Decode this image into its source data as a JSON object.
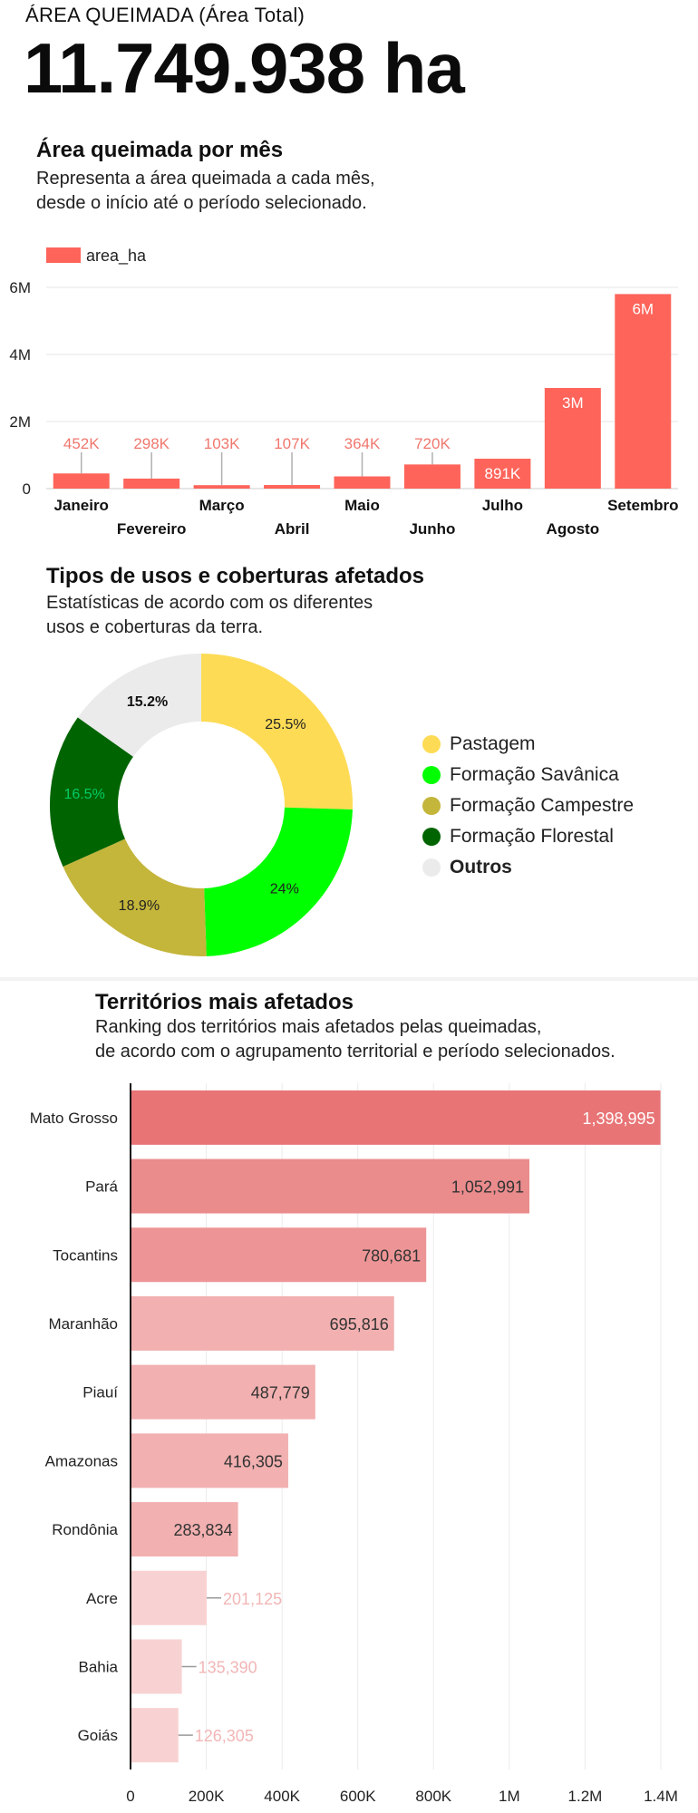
{
  "kpi": {
    "label": "ÁREA QUEIMADA (Área Total)",
    "value": "11.749.938 ha"
  },
  "monthly": {
    "title": "Área queimada por mês",
    "subtitle_lines": [
      "Representa a área queimada a cada mês,",
      "desde o início até o período selecionado."
    ],
    "bar_color": "#fe645a",
    "label_color": "#f0776e"
  },
  "landuse": {
    "title": "Tipos de usos e coberturas afetados",
    "subtitle_lines": [
      "Estatísticas de acordo com os diferentes",
      "usos e coberturas da terra."
    ]
  },
  "territories": {
    "title": "Territórios mais afetados",
    "subtitle_lines": [
      "Ranking dos territórios mais afetados pelas queimadas,",
      "de acordo com o agrupamento territorial e período selecionados."
    ]
  },
  "chart_data": [
    {
      "type": "bar",
      "title": "Área queimada por mês",
      "categories": [
        "Janeiro",
        "Fevereiro",
        "Março",
        "Abril",
        "Maio",
        "Junho",
        "Julho",
        "Agosto",
        "Setembro"
      ],
      "series": [
        {
          "name": "area_ha",
          "values": [
            452000,
            298000,
            103000,
            107000,
            364000,
            720000,
            891000,
            3000000,
            5800000
          ],
          "labels": [
            "452K",
            "298K",
            "103K",
            "107K",
            "364K",
            "720K",
            "891K",
            "3M",
            "6M"
          ]
        }
      ],
      "ylim": [
        0,
        6000000
      ],
      "yticks": [
        0,
        2000000,
        4000000,
        6000000
      ],
      "ytick_labels": [
        "0",
        "2M",
        "4M",
        "6M"
      ],
      "legend": "top-left",
      "grid": true
    },
    {
      "type": "pie",
      "title": "Tipos de usos e coberturas afetados",
      "labels": [
        "Pastagem",
        "Formação Savânica",
        "Formação Campestre",
        "Formação Florestal",
        "Outros"
      ],
      "values": [
        25.5,
        24,
        18.9,
        16.5,
        15.2
      ],
      "value_labels": [
        "25.5%",
        "24%",
        "18.9%",
        "16.5%",
        "15.2%"
      ],
      "colors": [
        "#fddb55",
        "#00ff00",
        "#c4b53b",
        "#006400",
        "#ebebeb"
      ],
      "label_colors": [
        "#222222",
        "#222222",
        "#222222",
        "#00cc66",
        "#111111"
      ],
      "legend": "right",
      "donut": true
    },
    {
      "type": "bar",
      "orientation": "horizontal",
      "title": "Territórios mais afetados",
      "categories": [
        "Mato Grosso",
        "Pará",
        "Tocantins",
        "Maranhão",
        "Piauí",
        "Amazonas",
        "Rondônia",
        "Acre",
        "Bahia",
        "Goiás"
      ],
      "values": [
        1398995,
        1052991,
        780681,
        695816,
        487779,
        416305,
        283834,
        201125,
        135390,
        126305
      ],
      "value_labels": [
        "1,398,995",
        "1,052,991",
        "780,681",
        "695,816",
        "487,779",
        "416,305",
        "283,834",
        "201,125",
        "135,390",
        "126,305"
      ],
      "colors": [
        "#e87476",
        "#ea8b8c",
        "#ed9596",
        "#f2b0b0",
        "#f2b0b0",
        "#f2b0b0",
        "#f2b0b0",
        "#f8d2d2",
        "#f8d2d2",
        "#f8d2d2"
      ],
      "xlim": [
        0,
        1400000
      ],
      "xticks": [
        0,
        200000,
        400000,
        600000,
        800000,
        1000000,
        1200000,
        1400000
      ],
      "xtick_labels": [
        "0",
        "200K",
        "400K",
        "600K",
        "800K",
        "1M",
        "1.2M",
        "1.4M"
      ],
      "grid": true
    }
  ]
}
